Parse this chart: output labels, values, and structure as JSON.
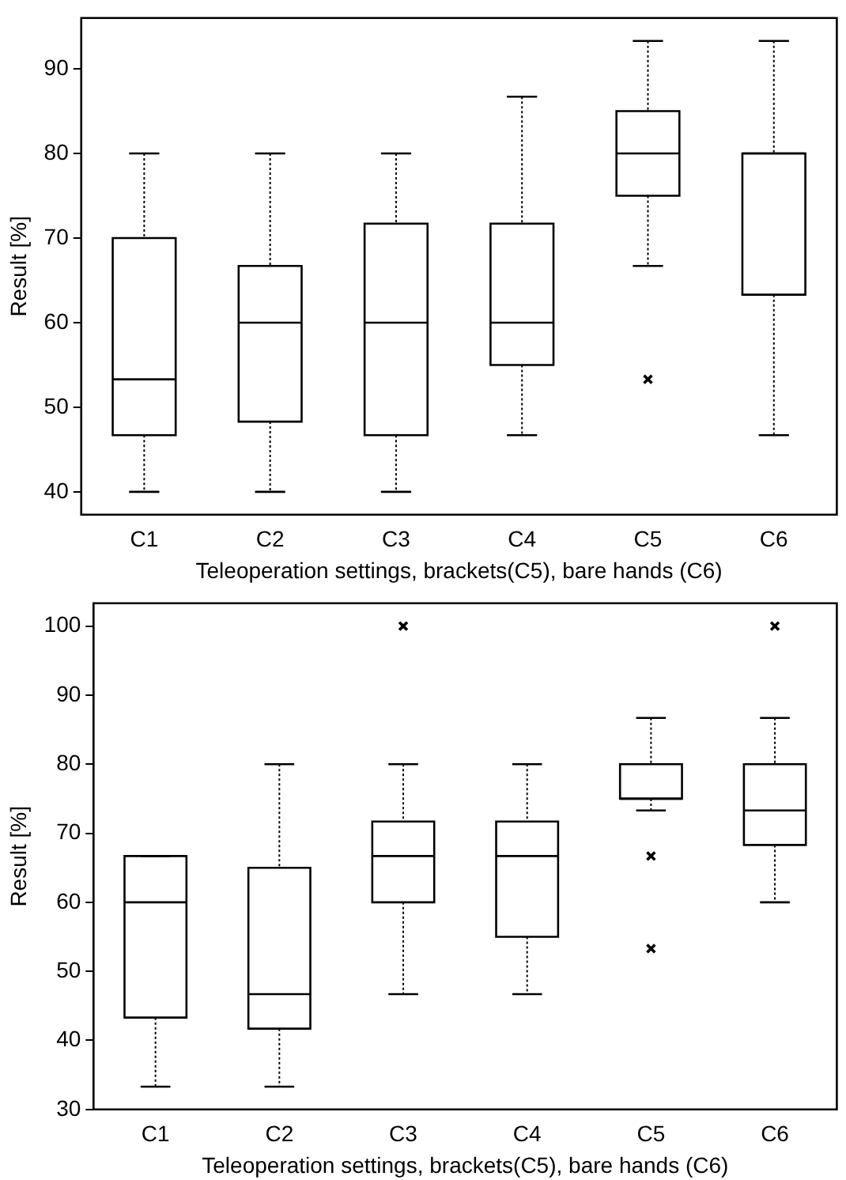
{
  "chart_data": [
    {
      "type": "box",
      "xlabel": "Teleoperation settings, brackets(C5), bare hands (C6)",
      "ylabel": "Result [%]",
      "categories": [
        "C1",
        "C2",
        "C3",
        "C4",
        "C5",
        "C6"
      ],
      "ylim": [
        37.3,
        96
      ],
      "yticks": [
        40,
        50,
        60,
        70,
        80,
        90
      ],
      "boxes": [
        {
          "low": 40,
          "q1": 46.7,
          "median": 53.3,
          "q3": 70,
          "high": 80
        },
        {
          "low": 40,
          "q1": 48.3,
          "median": 60,
          "q3": 66.7,
          "high": 80
        },
        {
          "low": 40,
          "q1": 46.7,
          "median": 60,
          "q3": 71.7,
          "high": 80
        },
        {
          "low": 46.7,
          "q1": 55,
          "median": 60,
          "q3": 71.7,
          "high": 86.7
        },
        {
          "low": 66.7,
          "q1": 75,
          "median": 80,
          "q3": 85,
          "high": 93.3,
          "outliers": [
            53.3
          ]
        },
        {
          "low": 46.7,
          "q1": 63.3,
          "median": 80,
          "q3": 80,
          "high": 93.3
        }
      ]
    },
    {
      "type": "box",
      "xlabel": "Teleoperation settings, brackets(C5), bare hands (C6)",
      "ylabel": "Result [%]",
      "categories": [
        "C1",
        "C2",
        "C3",
        "C4",
        "C5",
        "C6"
      ],
      "ylim": [
        30,
        103.3
      ],
      "yticks": [
        30,
        40,
        50,
        60,
        70,
        80,
        90,
        100
      ],
      "boxes": [
        {
          "low": 33.3,
          "q1": 43.3,
          "median": 60,
          "q3": 66.7,
          "high": 66.7
        },
        {
          "low": 33.3,
          "q1": 41.7,
          "median": 46.7,
          "q3": 65,
          "high": 80
        },
        {
          "low": 46.7,
          "q1": 60,
          "median": 66.7,
          "q3": 71.7,
          "high": 80,
          "outliers": [
            100
          ]
        },
        {
          "low": 46.7,
          "q1": 55,
          "median": 66.7,
          "q3": 71.7,
          "high": 80
        },
        {
          "low": 73.3,
          "q1": 75,
          "median": 75,
          "q3": 80,
          "high": 86.7,
          "outliers": [
            66.7,
            53.3
          ]
        },
        {
          "low": 60,
          "q1": 68.3,
          "median": 73.3,
          "q3": 80,
          "high": 86.7,
          "outliers": [
            100
          ]
        }
      ]
    }
  ]
}
